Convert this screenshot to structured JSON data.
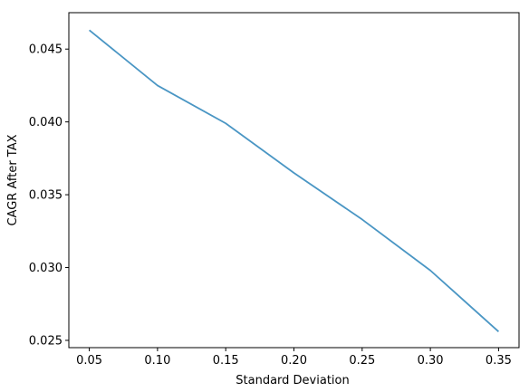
{
  "chart_data": {
    "type": "line",
    "title": "",
    "xlabel": "Standard Deviation",
    "ylabel": "CAGR After TAX",
    "xlim": [
      0.035,
      0.365
    ],
    "ylim": [
      0.0245,
      0.0475
    ],
    "xticks": [
      0.05,
      0.1,
      0.15,
      0.2,
      0.25,
      0.3,
      0.35
    ],
    "xtick_labels": [
      "0.05",
      "0.10",
      "0.15",
      "0.20",
      "0.25",
      "0.30",
      "0.35"
    ],
    "yticks": [
      0.025,
      0.03,
      0.035,
      0.04,
      0.045
    ],
    "ytick_labels": [
      "0.025",
      "0.030",
      "0.035",
      "0.040",
      "0.045"
    ],
    "grid": false,
    "legend": "none",
    "series": [
      {
        "color": "#4a96c4",
        "x": [
          0.05,
          0.1,
          0.15,
          0.2,
          0.25,
          0.3,
          0.35
        ],
        "y": [
          0.0463,
          0.0425,
          0.0399,
          0.0365,
          0.0333,
          0.0298,
          0.0256
        ]
      }
    ]
  }
}
